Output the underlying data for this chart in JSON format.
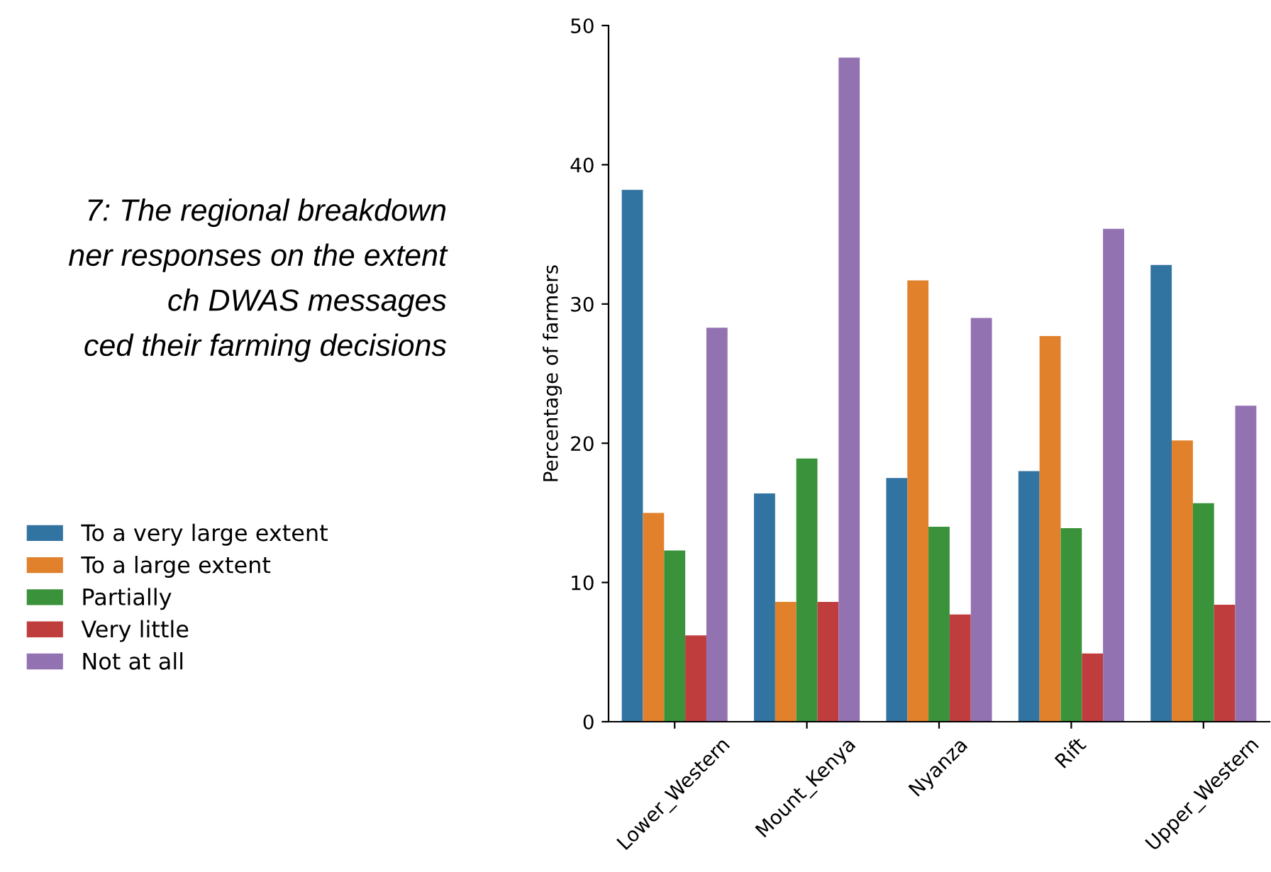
{
  "chart_data": {
    "type": "bar",
    "title": "7: The regional breakdown\nner responses on the extent\nch DWAS messages\nced their farming decisions",
    "ylabel": "Percentage of farmers",
    "categories": [
      "Lower_Western",
      "Mount_Kenya",
      "Nyanza",
      "Rift",
      "Upper_Western"
    ],
    "series": [
      {
        "name": "To a very large extent",
        "color": "#3274a1",
        "values": [
          38.2,
          16.4,
          17.5,
          18.0,
          32.8
        ]
      },
      {
        "name": "To a large extent",
        "color": "#e1812c",
        "values": [
          15.0,
          8.6,
          31.7,
          27.7,
          20.2
        ]
      },
      {
        "name": "Partially",
        "color": "#3a923a",
        "values": [
          12.3,
          18.9,
          14.0,
          13.9,
          15.7
        ]
      },
      {
        "name": "Very little",
        "color": "#c03d3e",
        "values": [
          6.2,
          8.6,
          7.7,
          4.9,
          8.4
        ]
      },
      {
        "name": "Not at all",
        "color": "#9372b2",
        "values": [
          28.3,
          47.7,
          29.0,
          35.4,
          22.7
        ]
      }
    ],
    "ylim": [
      0,
      50
    ],
    "yticks": [
      0,
      10,
      20,
      30,
      40,
      50
    ],
    "grid": false,
    "legend": "left"
  }
}
